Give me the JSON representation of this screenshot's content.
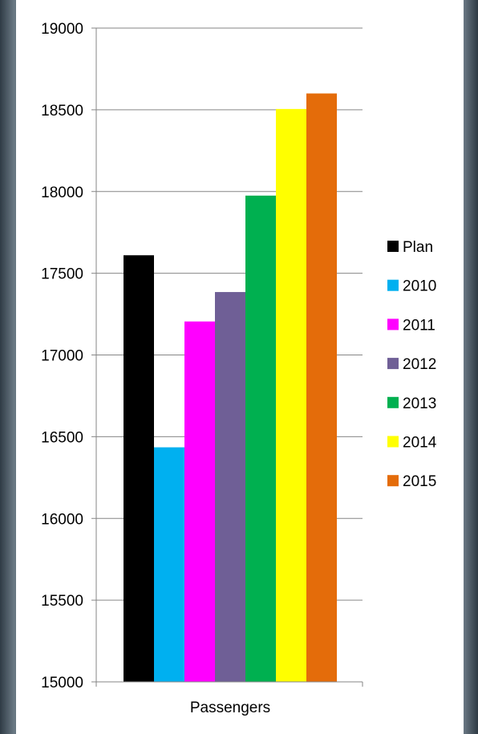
{
  "chart_data": {
    "type": "bar",
    "categories": [
      "Passengers"
    ],
    "series": [
      {
        "name": "Plan",
        "values": [
          17610
        ],
        "color": "#000000"
      },
      {
        "name": "2010",
        "values": [
          16435
        ],
        "color": "#00b0f0"
      },
      {
        "name": "2011",
        "values": [
          17205
        ],
        "color": "#ff00ff"
      },
      {
        "name": "2012",
        "values": [
          17385
        ],
        "color": "#6f5f96"
      },
      {
        "name": "2013",
        "values": [
          17975
        ],
        "color": "#00b050"
      },
      {
        "name": "2014",
        "values": [
          18505
        ],
        "color": "#ffff00"
      },
      {
        "name": "2015",
        "values": [
          18600
        ],
        "color": "#e46c0a"
      }
    ],
    "title": "",
    "xlabel": "",
    "ylabel": "",
    "ylim": [
      15000,
      19000
    ],
    "yticks": [
      15000,
      15500,
      16000,
      16500,
      17000,
      17500,
      18000,
      18500,
      19000
    ],
    "grid": true,
    "legend_position": "right"
  }
}
